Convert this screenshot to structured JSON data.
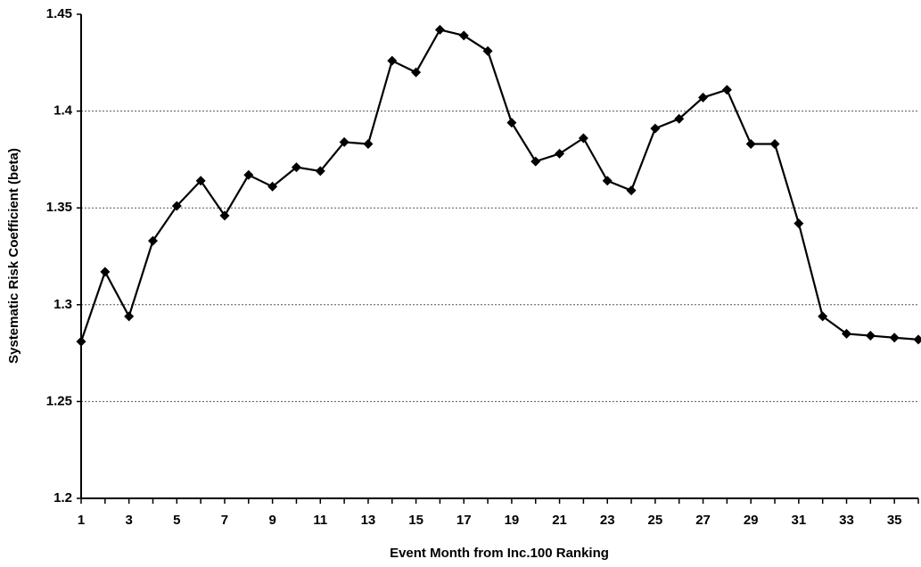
{
  "chart_data": {
    "type": "line",
    "x_label": "Event Month from Inc.100 Ranking",
    "y_label": "Systematic Risk Coefficient (beta)",
    "x": [
      1,
      2,
      3,
      4,
      5,
      6,
      7,
      8,
      9,
      10,
      11,
      12,
      13,
      14,
      15,
      16,
      17,
      18,
      19,
      20,
      21,
      22,
      23,
      24,
      25,
      26,
      27,
      28,
      29,
      30,
      31,
      32,
      33,
      34,
      35,
      36
    ],
    "series": [
      {
        "color": "#000000",
        "values": [
          1.281,
          1.317,
          1.294,
          1.333,
          1.351,
          1.364,
          1.346,
          1.367,
          1.361,
          1.371,
          1.369,
          1.384,
          1.383,
          1.426,
          1.42,
          1.442,
          1.439,
          1.431,
          1.394,
          1.374,
          1.378,
          1.386,
          1.364,
          1.359,
          1.391,
          1.396,
          1.407,
          1.411,
          1.383,
          1.383,
          1.342,
          1.294,
          1.285,
          1.284,
          1.283,
          1.282
        ]
      }
    ],
    "xlim": [
      1,
      36
    ],
    "xticks": [
      1,
      3,
      5,
      7,
      9,
      11,
      13,
      15,
      17,
      19,
      21,
      23,
      25,
      27,
      29,
      31,
      33,
      35
    ],
    "ylim": [
      1.2,
      1.45
    ],
    "yticks": [
      1.2,
      1.25,
      1.3,
      1.35,
      1.4,
      1.45
    ],
    "grid": true
  }
}
